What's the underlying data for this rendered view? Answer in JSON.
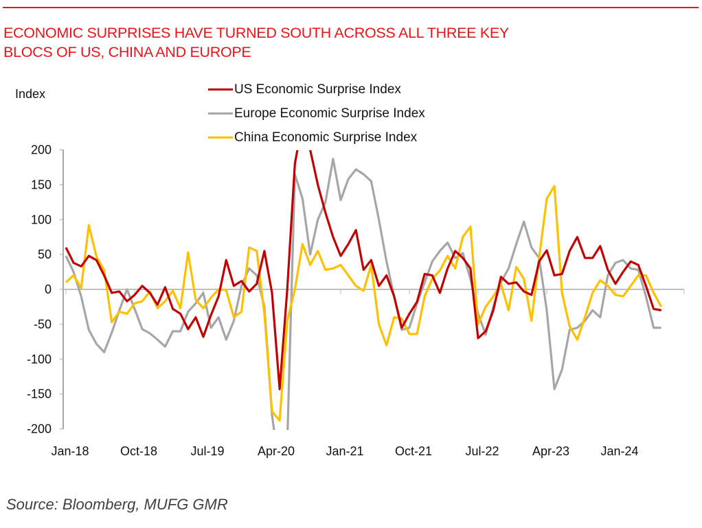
{
  "header": {
    "title_line1": "ECONOMIC SURPRISES HAVE TURNED SOUTH ACROSS ALL THREE KEY",
    "title_line2": "BLOCS OF US, CHINA AND EUROPE"
  },
  "footer": {
    "source": "Source: Bloomberg, MUFG GMR"
  },
  "colors": {
    "title": "#e8141c",
    "us": "#c00000",
    "europe": "#a6a6a6",
    "china": "#ffc000",
    "axis": "#bfbfbf"
  },
  "chart_data": {
    "type": "line",
    "title": "ECONOMIC SURPRISES HAVE TURNED SOUTH ACROSS ALL THREE KEY BLOCS OF US, CHINA AND EUROPE",
    "xlabel": "",
    "ylabel": "Index",
    "ylim": [
      -200,
      200
    ],
    "yticks": [
      200,
      150,
      100,
      50,
      0,
      -50,
      -100,
      -150,
      -200
    ],
    "xtick_labels": [
      "Jan-18",
      "Oct-18",
      "Jul-19",
      "Apr-20",
      "Jan-21",
      "Oct-21",
      "Jul-22",
      "Apr-23",
      "Jan-24"
    ],
    "x_start": "Jan-18",
    "x_frequency": "monthly",
    "n_points": 79,
    "legend_position": "top-center",
    "grid": false,
    "series": [
      {
        "name": "US Economic Surprise Index",
        "color": "#c00000",
        "values": [
          60,
          38,
          33,
          48,
          42,
          20,
          -5,
          -3,
          -17,
          -8,
          5,
          -5,
          -22,
          3,
          -28,
          -35,
          -57,
          -40,
          -68,
          -37,
          -10,
          42,
          5,
          12,
          -3,
          8,
          55,
          -5,
          -143,
          0,
          180,
          240,
          200,
          150,
          110,
          75,
          48,
          65,
          85,
          28,
          42,
          5,
          20,
          -10,
          -55,
          -35,
          -18,
          22,
          20,
          -5,
          30,
          55,
          45,
          30,
          -70,
          -60,
          -30,
          18,
          8,
          10,
          -3,
          -8,
          40,
          56,
          20,
          22,
          55,
          75,
          45,
          45,
          62,
          28,
          8,
          25,
          40,
          35,
          5,
          -28,
          -30
        ]
      },
      {
        "name": "Europe Economic Surprise Index",
        "color": "#a6a6a6",
        "values": [
          48,
          25,
          -10,
          -58,
          -78,
          -90,
          -62,
          -30,
          0,
          -28,
          -57,
          -63,
          -72,
          -82,
          -60,
          -60,
          -32,
          -20,
          -5,
          -55,
          -40,
          -72,
          -45,
          5,
          30,
          20,
          -25,
          -180,
          -260,
          -220,
          165,
          130,
          50,
          100,
          125,
          187,
          128,
          158,
          172,
          165,
          155,
          100,
          40,
          -10,
          -58,
          -55,
          -20,
          10,
          40,
          55,
          67,
          45,
          52,
          15,
          -35,
          -65,
          -25,
          10,
          30,
          65,
          97,
          60,
          45,
          -30,
          -143,
          -115,
          -58,
          -55,
          -45,
          -30,
          -40,
          20,
          38,
          42,
          30,
          28,
          -10,
          -55,
          -55
        ]
      },
      {
        "name": "China Economic Surprise Index",
        "color": "#ffc000",
        "values": [
          10,
          20,
          2,
          92,
          47,
          28,
          -47,
          -32,
          -35,
          -20,
          -17,
          -3,
          -27,
          -17,
          -2,
          -27,
          53,
          -15,
          -27,
          -12,
          0,
          -1,
          -40,
          -32,
          60,
          55,
          -35,
          -175,
          -188,
          -45,
          0,
          65,
          35,
          55,
          28,
          30,
          35,
          20,
          5,
          -2,
          35,
          -50,
          -80,
          -40,
          -42,
          -64,
          -64,
          -10,
          15,
          27,
          48,
          30,
          75,
          90,
          -50,
          -25,
          -10,
          8,
          -30,
          32,
          15,
          -45,
          45,
          130,
          148,
          -5,
          -53,
          -72,
          -40,
          -5,
          13,
          5,
          -8,
          -10,
          5,
          20,
          20,
          -5,
          -25
        ]
      }
    ]
  }
}
